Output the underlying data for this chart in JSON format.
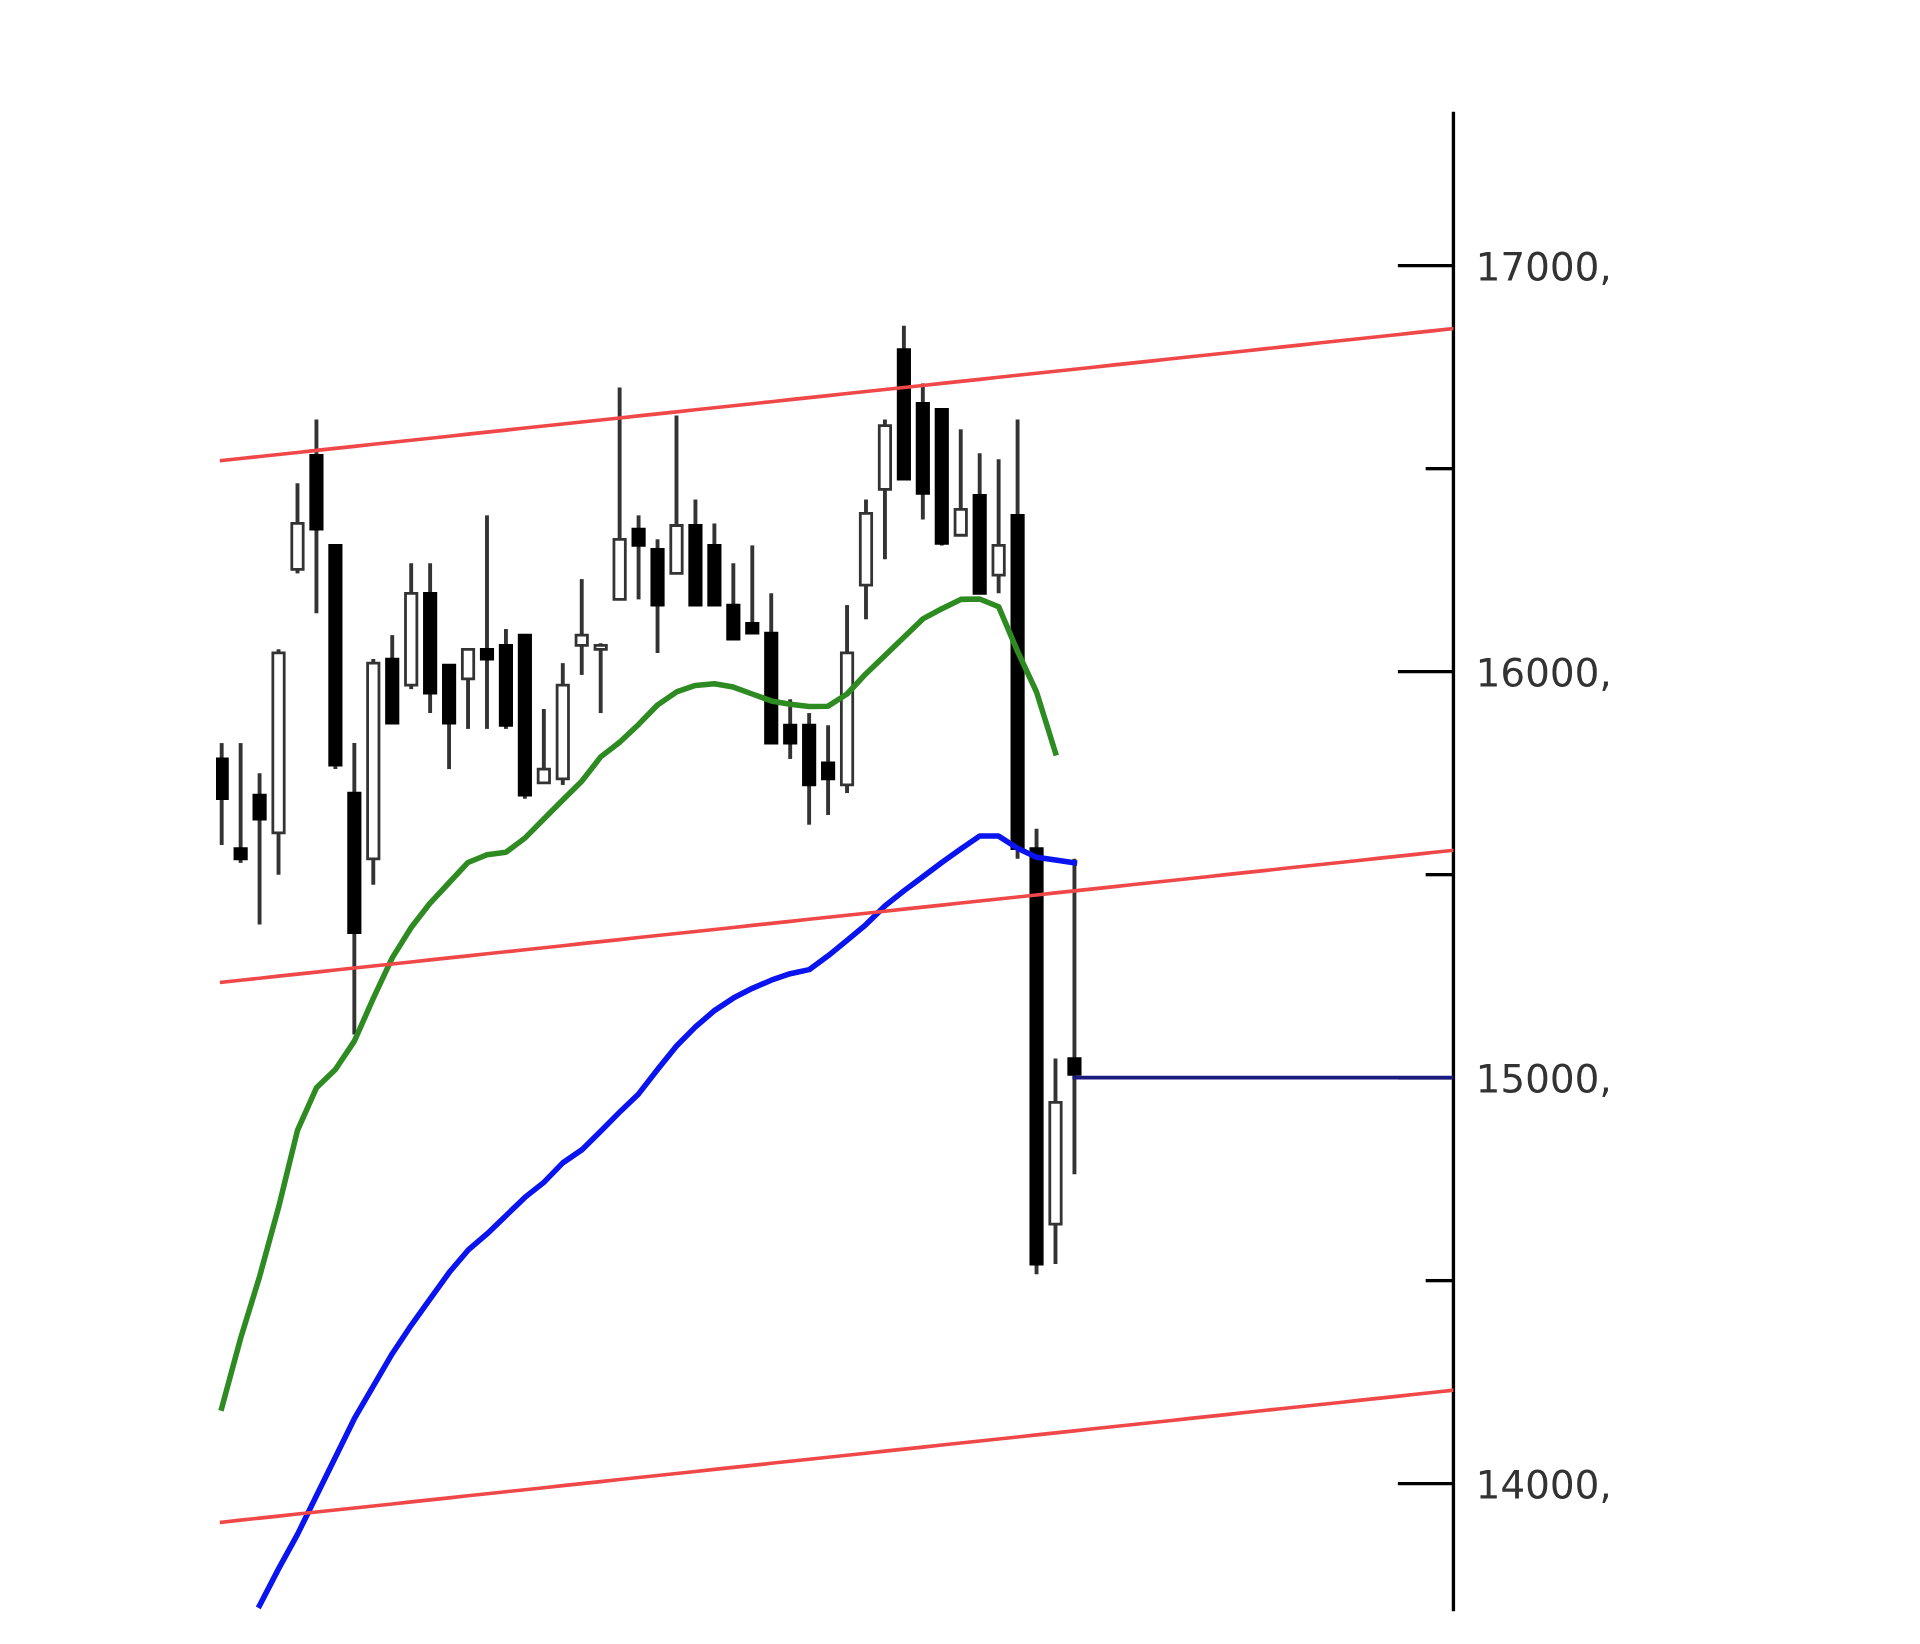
{
  "chart_data": {
    "type": "candlestick",
    "categories": [
      null,
      null,
      null,
      null,
      null,
      null,
      null,
      null,
      null,
      null,
      null,
      null,
      null,
      null,
      null,
      null,
      null,
      null,
      null,
      null,
      null,
      null,
      null,
      null,
      null,
      null,
      null,
      null,
      null,
      null,
      null,
      null,
      null,
      null,
      null,
      null,
      null,
      null,
      null,
      null,
      null,
      null,
      null,
      null,
      null,
      null,
      null,
      null,
      null,
      null,
      null,
      null,
      null,
      null,
      null,
      null,
      null,
      null,
      null,
      null,
      null,
      null,
      null,
      null,
      null,
      null
    ],
    "ohlc": [
      [
        15785,
        15824,
        15573,
        15687
      ],
      [
        15564,
        15824,
        15529,
        15539
      ],
      [
        15696,
        15750,
        15377,
        15637
      ],
      [
        15603,
        16055,
        15500,
        16046
      ],
      [
        16252,
        16464,
        16242,
        16365
      ],
      [
        16533,
        16621,
        16144,
        16351
      ],
      [
        16311,
        16311,
        15760,
        15770
      ],
      [
        15701,
        15824,
        15106,
        15357
      ],
      [
        15539,
        16031,
        15475,
        16021
      ],
      [
        16031,
        16090,
        15873,
        15873
      ],
      [
        15967,
        16267,
        15957,
        16193
      ],
      [
        16193,
        16267,
        15898,
        15947
      ],
      [
        16016,
        16016,
        15760,
        15873
      ],
      [
        15982,
        16055,
        15859,
        16055
      ],
      [
        16055,
        16385,
        15859,
        16031
      ],
      [
        16065,
        16105,
        15859,
        15868
      ],
      [
        16090,
        16090,
        15687,
        15696
      ],
      [
        15726,
        15908,
        15726,
        15760
      ],
      [
        15736,
        16021,
        15721,
        15967
      ],
      [
        16065,
        16228,
        15992,
        16090
      ],
      [
        16055,
        16070,
        15898,
        16065
      ],
      [
        16178,
        16700,
        16178,
        16326
      ],
      [
        16351,
        16385,
        16178,
        16311
      ],
      [
        16301,
        16326,
        16046,
        16164
      ],
      [
        16242,
        16631,
        16242,
        16360
      ],
      [
        16360,
        16424,
        16164,
        16164
      ],
      [
        16311,
        16365,
        16164,
        16164
      ],
      [
        16164,
        16267,
        16080,
        16080
      ],
      [
        16119,
        16311,
        16095,
        16095
      ],
      [
        16095,
        16193,
        15824,
        15824
      ],
      [
        15868,
        15932,
        15785,
        15824
      ],
      [
        15868,
        15898,
        15623,
        15721
      ],
      [
        15775,
        15868,
        15647,
        15736
      ],
      [
        15721,
        16164,
        15701,
        16046
      ],
      [
        16213,
        16424,
        16129,
        16390
      ],
      [
        16449,
        16621,
        16277,
        16606
      ],
      [
        16793,
        16852,
        16474,
        16474
      ],
      [
        16661,
        16710,
        16375,
        16439
      ],
      [
        16646,
        16646,
        16311,
        16316
      ],
      [
        16336,
        16597,
        16336,
        16400
      ],
      [
        16434,
        16538,
        16193,
        16193
      ],
      [
        16238,
        16523,
        16193,
        16311
      ],
      [
        16385,
        16621,
        15539,
        15564
      ],
      [
        15564,
        15613,
        14516,
        14541
      ],
      [
        14639,
        15047,
        14541,
        14939
      ],
      [
        15047,
        15539,
        14762,
        15008
      ],
      null,
      null,
      null,
      null,
      null,
      null,
      null,
      null,
      null,
      null,
      null,
      null,
      null,
      null,
      null,
      null,
      null,
      null,
      null,
      null
    ],
    "series": [
      {
        "type": "line",
        "color": "#2e8b22",
        "values": [
          14186,
          14358,
          14510,
          14680,
          14870,
          14975,
          15020,
          15090,
          15195,
          15295,
          15370,
          15430,
          15480,
          15530,
          15549,
          15555,
          15590,
          15637,
          15684,
          15730,
          15790,
          15826,
          15870,
          15918,
          15950,
          15966,
          15970,
          15962,
          15945,
          15928,
          15920,
          15914,
          15915,
          15945,
          15995,
          16040,
          16085,
          16130,
          16155,
          16178,
          16179,
          16160,
          16050,
          15950,
          15800,
          null,
          null,
          null,
          null,
          null,
          null,
          null,
          null,
          null,
          null,
          null,
          null,
          null,
          null,
          null,
          null,
          null,
          null,
          null,
          null,
          null
        ]
      },
      {
        "type": "line",
        "color": "#0a14f0",
        "values": [
          null,
          null,
          13700,
          13790,
          13875,
          13970,
          14065,
          14160,
          14240,
          14320,
          14390,
          14455,
          14520,
          14575,
          14615,
          14660,
          14705,
          14742,
          14790,
          14822,
          14868,
          14915,
          14960,
          15020,
          15078,
          15125,
          15165,
          15196,
          15220,
          15240,
          15256,
          15266,
          15300,
          15338,
          15377,
          15423,
          15460,
          15495,
          15530,
          15563,
          15595,
          15595,
          15565,
          15543,
          15536,
          15529,
          null,
          null,
          null,
          null,
          null,
          null,
          null,
          null,
          null,
          null,
          null,
          null,
          null,
          null,
          null,
          null,
          null,
          null,
          null,
          null
        ]
      },
      {
        "type": "line",
        "color": "#f04848",
        "values": [
          16520,
          16525,
          16530,
          16535,
          16540,
          16545,
          16550,
          16555,
          16560,
          16565,
          16570,
          16575,
          16580,
          16585,
          16590,
          16595,
          16600,
          16605,
          16610,
          16615,
          16620,
          16625,
          16630,
          16635,
          16640,
          16645,
          16650,
          16655,
          16660,
          16665,
          16670,
          16675,
          16680,
          16685,
          16690,
          16695,
          16700,
          16705,
          16710,
          16715,
          16720,
          16725,
          16730,
          16735,
          16740,
          16745,
          16750,
          16755,
          16760,
          16765,
          16770,
          16775,
          16780,
          16785,
          16790,
          16795,
          16800,
          16805,
          16810,
          16815,
          16820,
          16825,
          16830,
          16835,
          16840,
          16845
        ]
      },
      {
        "type": "line",
        "color": "#f04848",
        "values": [
          15235,
          15240,
          15245,
          15250,
          15255,
          15260,
          15265,
          15270,
          15275,
          15280,
          15285,
          15290,
          15295,
          15300,
          15305,
          15310,
          15315,
          15320,
          15325,
          15330,
          15335,
          15340,
          15345,
          15350,
          15355,
          15360,
          15365,
          15370,
          15375,
          15380,
          15385,
          15390,
          15395,
          15400,
          15405,
          15410,
          15415,
          15420,
          15425,
          15430,
          15435,
          15440,
          15445,
          15450,
          15455,
          15460,
          15465,
          15470,
          15475,
          15480,
          15485,
          15490,
          15495,
          15500,
          15505,
          15510,
          15515,
          15520,
          15525,
          15530,
          15535,
          15540,
          15545,
          15550,
          15555,
          15560
        ]
      },
      {
        "type": "line",
        "color": "#f04848",
        "values": [
          13905,
          13910,
          13915,
          13920,
          13925,
          13930,
          13935,
          13940,
          13945,
          13950,
          13955,
          13960,
          13965,
          13970,
          13975,
          13980,
          13985,
          13990,
          13995,
          14000,
          14005,
          14010,
          14015,
          14020,
          14025,
          14030,
          14035,
          14040,
          14045,
          14050,
          14055,
          14060,
          14065,
          14070,
          14075,
          14080,
          14085,
          14090,
          14095,
          14100,
          14105,
          14110,
          14115,
          14120,
          14125,
          14130,
          14135,
          14140,
          14145,
          14150,
          14155,
          14160,
          14165,
          14170,
          14175,
          14180,
          14185,
          14190,
          14195,
          14200,
          14205,
          14210,
          14215,
          14220,
          14225,
          14230
        ]
      },
      {
        "type": "line",
        "color": "#1a1a80",
        "values": [
          null,
          null,
          null,
          null,
          null,
          null,
          null,
          null,
          null,
          null,
          null,
          null,
          null,
          null,
          null,
          null,
          null,
          null,
          null,
          null,
          null,
          null,
          null,
          null,
          null,
          null,
          null,
          null,
          null,
          null,
          null,
          null,
          null,
          null,
          null,
          null,
          null,
          null,
          null,
          null,
          null,
          null,
          null,
          null,
          null,
          15000,
          15000,
          15000,
          15000,
          15000,
          15000,
          15000,
          15000,
          15000,
          15000,
          15000,
          15000,
          15000,
          15000,
          15000,
          15000,
          15000,
          15000,
          15000,
          15000,
          15000
        ]
      }
    ],
    "ylim": [
      13690,
      17375
    ],
    "yticks": [
      {
        "value": 14000,
        "label": "14000,"
      },
      {
        "value": 14500,
        "label": null
      },
      {
        "value": 15000,
        "label": "15000,"
      },
      {
        "value": 15500,
        "label": null
      },
      {
        "value": 16000,
        "label": "16000,"
      },
      {
        "value": 16500,
        "label": null
      },
      {
        "value": 17000,
        "label": "17000,"
      }
    ],
    "tick_labels": "y",
    "grid": false
  }
}
